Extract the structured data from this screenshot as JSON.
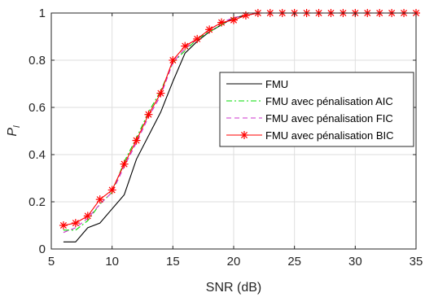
{
  "chart_data": {
    "type": "line",
    "xlabel": "SNR (dB)",
    "ylabel": "P",
    "ylabel_subscript": "l",
    "xlim": [
      5,
      35
    ],
    "ylim": [
      0,
      1
    ],
    "xticks": [
      "5",
      "10",
      "15",
      "20",
      "25",
      "30",
      "35"
    ],
    "yticks": [
      "0",
      "0.2",
      "0.4",
      "0.6",
      "0.8",
      "1"
    ],
    "grid": true,
    "legend_position": "center-right",
    "x": [
      6,
      7,
      8,
      9,
      10,
      11,
      12,
      13,
      14,
      15,
      16,
      17,
      18,
      19,
      20,
      21,
      22,
      23,
      24,
      25,
      26,
      27,
      28,
      29,
      30,
      31,
      32,
      33,
      34,
      35
    ],
    "series": [
      {
        "name": "FMU",
        "color": "#000000",
        "dash": "",
        "marker": "none",
        "values": [
          0.03,
          0.03,
          0.09,
          0.11,
          0.17,
          0.23,
          0.38,
          0.48,
          0.58,
          0.71,
          0.83,
          0.88,
          0.92,
          0.95,
          0.98,
          0.99,
          1.0,
          1.0,
          1.0,
          1.0,
          1.0,
          1.0,
          1.0,
          1.0,
          1.0,
          1.0,
          1.0,
          1.0,
          1.0,
          1.0
        ]
      },
      {
        "name": "FMU avec pénalisation AIC",
        "color": "#00dd00",
        "dash": "7,3,2,3",
        "marker": "none",
        "values": [
          0.08,
          0.08,
          0.12,
          0.19,
          0.24,
          0.37,
          0.47,
          0.58,
          0.67,
          0.79,
          0.84,
          0.89,
          0.92,
          0.95,
          0.98,
          0.99,
          1.0,
          1.0,
          1.0,
          1.0,
          1.0,
          1.0,
          1.0,
          1.0,
          1.0,
          1.0,
          1.0,
          1.0,
          1.0,
          1.0
        ]
      },
      {
        "name": "FMU avec pénalisation FIC",
        "color": "#cc33cc",
        "dash": "6,4",
        "marker": "none",
        "values": [
          0.07,
          0.09,
          0.13,
          0.19,
          0.24,
          0.35,
          0.45,
          0.56,
          0.65,
          0.79,
          0.85,
          0.89,
          0.93,
          0.96,
          0.98,
          0.99,
          1.0,
          1.0,
          1.0,
          1.0,
          1.0,
          1.0,
          1.0,
          1.0,
          1.0,
          1.0,
          1.0,
          1.0,
          1.0,
          1.0
        ]
      },
      {
        "name": "FMU avec pénalisation BIC",
        "color": "#ff0000",
        "dash": "",
        "marker": "asterisk",
        "values": [
          0.1,
          0.11,
          0.14,
          0.21,
          0.25,
          0.36,
          0.46,
          0.57,
          0.66,
          0.8,
          0.86,
          0.89,
          0.93,
          0.96,
          0.97,
          0.99,
          1.0,
          1.0,
          1.0,
          1.0,
          1.0,
          1.0,
          1.0,
          1.0,
          1.0,
          1.0,
          1.0,
          1.0,
          1.0,
          1.0
        ]
      }
    ]
  }
}
